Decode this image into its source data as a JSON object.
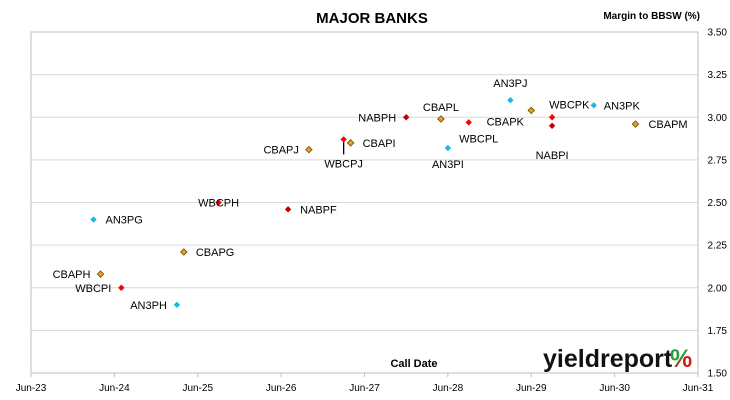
{
  "chart_data": {
    "type": "scatter",
    "title": "MAJOR BANKS",
    "xlabel": "Call Date",
    "ylabel": "Margin to BBSW (%)",
    "x_ticks": [
      "Jun-23",
      "Jun-24",
      "Jun-25",
      "Jun-26",
      "Jun-27",
      "Jun-28",
      "Jun-29",
      "Jun-30",
      "Jun-31"
    ],
    "xlim": [
      "Jun-23",
      "Jun-31"
    ],
    "ylim": [
      1.5,
      3.5
    ],
    "y_ticks": [
      1.5,
      1.75,
      2.0,
      2.25,
      2.5,
      2.75,
      3.0,
      3.25,
      3.5
    ],
    "grid": "horizontal",
    "series_colors": {
      "ANZ": "#1ab7ea",
      "CBA": "#e8a317",
      "NAB": "#c00000",
      "WBC": "#ff0000"
    },
    "points": [
      {
        "label": "AN3PG",
        "bank": "ANZ",
        "x": "Mar-24",
        "y": 2.4
      },
      {
        "label": "CBAPH",
        "bank": "CBA",
        "x": "Apr-24",
        "y": 2.08
      },
      {
        "label": "WBCPI",
        "bank": "WBC",
        "x": "Jul-24",
        "y": 2.0
      },
      {
        "label": "AN3PH",
        "bank": "ANZ",
        "x": "Mar-25",
        "y": 1.9
      },
      {
        "label": "CBAPG",
        "bank": "CBA",
        "x": "Apr-25",
        "y": 2.21
      },
      {
        "label": "WBCPH",
        "bank": "WBC",
        "x": "Sep-25",
        "y": 2.5
      },
      {
        "label": "NABPF",
        "bank": "NAB",
        "x": "Jul-26",
        "y": 2.46
      },
      {
        "label": "CBAPJ",
        "bank": "CBA",
        "x": "Oct-26",
        "y": 2.81
      },
      {
        "label": "WBCPJ",
        "bank": "WBC",
        "x": "Mar-27",
        "y": 2.87
      },
      {
        "label": "CBAPI",
        "bank": "CBA",
        "x": "Apr-27",
        "y": 2.85
      },
      {
        "label": "NABPH",
        "bank": "NAB",
        "x": "Dec-27",
        "y": 3.0
      },
      {
        "label": "CBAPL",
        "bank": "CBA",
        "x": "May-28",
        "y": 2.99
      },
      {
        "label": "AN3PI",
        "bank": "ANZ",
        "x": "Jun-28",
        "y": 2.82
      },
      {
        "label": "WBCPL",
        "bank": "WBC",
        "x": "Sep-28",
        "y": 2.97
      },
      {
        "label": "AN3PJ",
        "bank": "ANZ",
        "x": "Mar-29",
        "y": 3.1
      },
      {
        "label": "CBAPK",
        "bank": "CBA",
        "x": "Jun-29",
        "y": 3.04
      },
      {
        "label": "NABPI",
        "bank": "NAB",
        "x": "Sep-29",
        "y": 2.95
      },
      {
        "label": "WBCPK",
        "bank": "WBC",
        "x": "Sep-29",
        "y": 3.0
      },
      {
        "label": "AN3PK",
        "bank": "ANZ",
        "x": "Mar-30",
        "y": 3.07
      },
      {
        "label": "CBAPM",
        "bank": "CBA",
        "x": "Sep-30",
        "y": 2.96
      }
    ]
  },
  "branding": {
    "name": "yieldreport",
    "symbol": "%",
    "symbol_colors": [
      "#2e9e3a",
      "#cc1f1f"
    ]
  }
}
